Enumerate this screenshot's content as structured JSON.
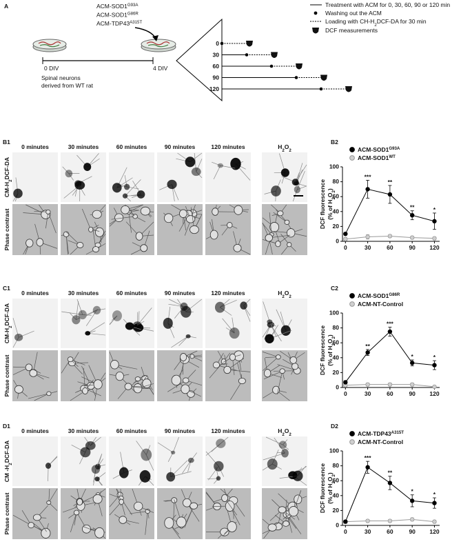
{
  "panel_a": {
    "label": "A",
    "acm_labels": [
      [
        "ACM-SOD1",
        {
          "sup": "G93A"
        }
      ],
      [
        "ACM-SOD1",
        {
          "sup": "G86R"
        }
      ],
      [
        "ACM-TDP43",
        {
          "sup": "A315T"
        }
      ]
    ],
    "legend": [
      "Treatment with ACM for 0, 30, 60, 90 or 120 min",
      "Washing out the ACM",
      [
        "Loading with CH-H",
        {
          "sub": "2"
        },
        "DCF-DA for 30 min"
      ],
      "DCF measurements"
    ],
    "div_labels": [
      "0 DIV",
      "4 DIV"
    ],
    "cells": [
      "Spinal neurons",
      "derived from WT rat"
    ],
    "times": [
      "0",
      "30",
      "60",
      "90",
      "120"
    ]
  },
  "image_panels": [
    {
      "label": "B1",
      "columns": [
        "0 minutes",
        "30 minutes",
        "60 minutes",
        "90 minutes",
        "120 minutes",
        [
          "H",
          {
            "sub": "2"
          },
          "O",
          {
            "sub": "2"
          }
        ]
      ],
      "rows": [
        [
          "CM-H",
          {
            "sub": "2"
          },
          "DCF-DA"
        ],
        "Phase contrast"
      ]
    },
    {
      "label": "C1",
      "columns": [
        "0 minutes",
        "30 minutes",
        "60 minutes",
        "90 minutes",
        "120 minutes",
        [
          "H",
          {
            "sub": "2"
          },
          "O",
          {
            "sub": "2"
          }
        ]
      ],
      "rows": [
        [
          "CM-H",
          {
            "sub": "2"
          },
          "DCF-DA"
        ],
        "Phase contrast"
      ]
    },
    {
      "label": "D1",
      "columns": [
        "0 minutes",
        "30 minutes",
        "60 minutes",
        "90 minutes",
        "120 minutes",
        [
          "H",
          {
            "sub": "2"
          },
          "O",
          {
            "sub": "2"
          }
        ]
      ],
      "rows": [
        [
          "CM -H",
          {
            "sub": "2"
          },
          "DCF-DA"
        ],
        "Phase contrast"
      ]
    }
  ],
  "chart_data": [
    {
      "type": "line",
      "label": "B2",
      "ylabel": "DCF fluorescence",
      "ylabel2": [
        "(% of H",
        {
          "sub": "2"
        },
        "O",
        {
          "sub": "2"
        },
        ")"
      ],
      "x": [
        0,
        30,
        60,
        90,
        120
      ],
      "xlim": [
        -4,
        127
      ],
      "xticks": [
        0,
        30,
        60,
        90,
        120
      ],
      "ylim": [
        0,
        100
      ],
      "yticks": [
        0,
        20,
        40,
        60,
        80,
        100
      ],
      "series": [
        {
          "name": [
            "ACM-SOD1",
            {
              "sup": "G93A"
            }
          ],
          "color": "#000000",
          "values": [
            10,
            70,
            63,
            35,
            27
          ],
          "errors": [
            0,
            12,
            12,
            6,
            11
          ],
          "significance": [
            null,
            "***",
            "**",
            "**",
            "*"
          ]
        },
        {
          "name": [
            "ACM-SOD1",
            {
              "sup": "WT"
            }
          ],
          "color": "#999999",
          "values": [
            3,
            6,
            7,
            5,
            4
          ],
          "errors": [
            2,
            3,
            2,
            2,
            2
          ]
        }
      ]
    },
    {
      "type": "line",
      "label": "C2",
      "ylabel": "DCF fluorescence",
      "ylabel2": [
        "(% of H",
        {
          "sub": "2"
        },
        "O",
        {
          "sub": "2"
        },
        ")"
      ],
      "x": [
        0,
        30,
        60,
        90,
        120
      ],
      "xlim": [
        -4,
        127
      ],
      "xticks": [
        0,
        30,
        60,
        90,
        120
      ],
      "ylim": [
        0,
        100
      ],
      "yticks": [
        0,
        20,
        40,
        60,
        80,
        100
      ],
      "series": [
        {
          "name": [
            "ACM-SOD1",
            {
              "sup": "G86R"
            }
          ],
          "color": "#000000",
          "values": [
            7,
            47,
            75,
            33,
            30
          ],
          "errors": [
            2,
            4,
            6,
            4,
            6
          ],
          "significance": [
            null,
            "**",
            "***",
            "*",
            "*"
          ]
        },
        {
          "name": [
            "ACM-NT-Control"
          ],
          "color": "#999999",
          "values": [
            3,
            4,
            4,
            4,
            1
          ],
          "errors": [
            2,
            2,
            2,
            2,
            1
          ]
        }
      ]
    },
    {
      "type": "line",
      "label": "D2",
      "ylabel": "DCF fluorescence",
      "ylabel2": [
        "(% of H",
        {
          "sub": "2"
        },
        "O",
        {
          "sub": "2"
        },
        ")"
      ],
      "x": [
        0,
        30,
        60,
        90,
        120
      ],
      "xlim": [
        -4,
        127
      ],
      "xticks": [
        0,
        30,
        60,
        90,
        120
      ],
      "ylim": [
        0,
        100
      ],
      "yticks": [
        0,
        20,
        40,
        60,
        80,
        100
      ],
      "series": [
        {
          "name": [
            "ACM-TDP43",
            {
              "sup": "A315T"
            }
          ],
          "color": "#000000",
          "values": [
            5,
            78,
            57,
            33,
            30
          ],
          "errors": [
            2,
            8,
            9,
            8,
            7
          ],
          "significance": [
            null,
            "***",
            "**",
            "*",
            "*"
          ]
        },
        {
          "name": [
            "ACM-NT-Control"
          ],
          "color": "#999999",
          "values": [
            5,
            6,
            6,
            8,
            5
          ],
          "errors": [
            2,
            2,
            2,
            2,
            2
          ]
        }
      ]
    }
  ]
}
